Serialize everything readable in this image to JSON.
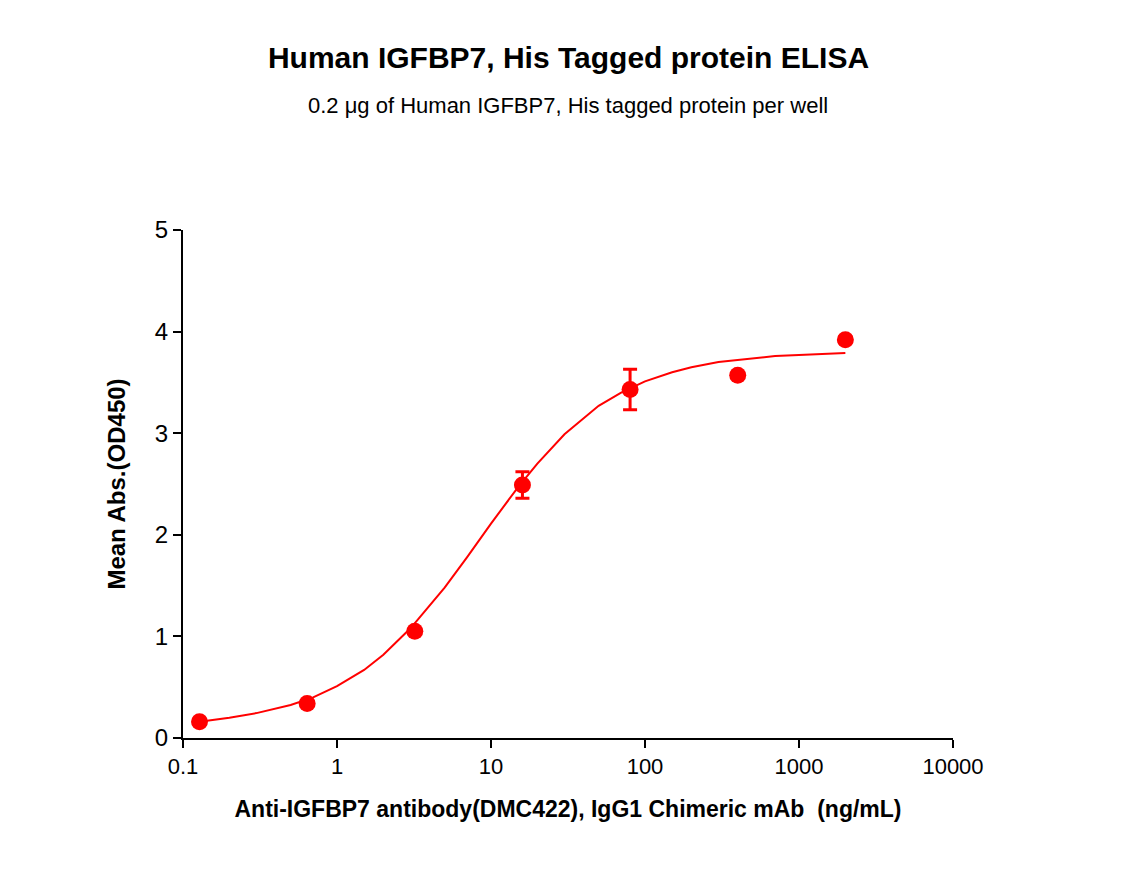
{
  "chart_data": {
    "type": "scatter",
    "title": "Human IGFBP7, His Tagged protein ELISA",
    "subtitle": "0.2 μg of Human IGFBP7, His tagged protein per well",
    "x_label": "Anti-IGFBP7 antibody(DMC422), IgG1 Chimeric mAb  (ng/mL)",
    "y_label": "Mean Abs.(OD450)",
    "x": [
      0.128,
      0.64,
      3.2,
      16,
      80,
      400,
      2000
    ],
    "values": [
      0.16,
      0.34,
      1.05,
      2.49,
      3.43,
      3.57,
      3.92
    ],
    "error": [
      0.02,
      0.02,
      0.02,
      0.13,
      0.2,
      0.02,
      0.03
    ],
    "curve_x": [
      0.128,
      0.2,
      0.3,
      0.5,
      0.7,
      1,
      1.5,
      2,
      3,
      4,
      5,
      7,
      10,
      15,
      20,
      30,
      50,
      70,
      100,
      150,
      200,
      300,
      500,
      700,
      1000,
      1500,
      2000
    ],
    "curve_values": [
      0.16,
      0.2,
      0.245,
      0.325,
      0.4,
      0.51,
      0.67,
      0.82,
      1.08,
      1.3,
      1.48,
      1.78,
      2.11,
      2.47,
      2.7,
      2.99,
      3.27,
      3.4,
      3.51,
      3.6,
      3.65,
      3.7,
      3.74,
      3.76,
      3.77,
      3.78,
      3.79
    ],
    "color": "#ff0000",
    "marker": "circle",
    "line_style": "solid",
    "xlim": [
      0.1,
      10000
    ],
    "ylim": [
      0,
      5
    ],
    "xticks": [
      0.1,
      1,
      10,
      100,
      1000,
      10000
    ],
    "yticks": [
      0,
      1,
      2,
      3,
      4,
      5
    ],
    "log": "x",
    "grid": false
  }
}
